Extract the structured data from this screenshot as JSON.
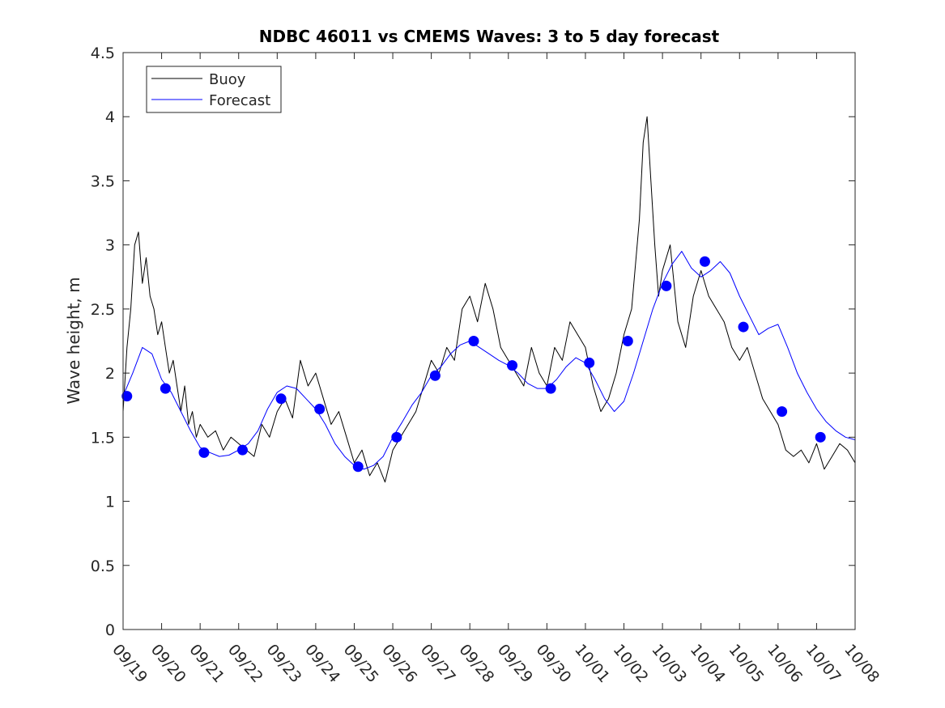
{
  "chart_data": {
    "type": "line",
    "title": "NDBC 46011 vs CMEMS Waves: 3 to 5 day forecast",
    "xlabel": "",
    "ylabel": "Wave height, m",
    "xlim": [
      0,
      19
    ],
    "ylim": [
      0,
      4.5
    ],
    "yticks": [
      0,
      0.5,
      1,
      1.5,
      2,
      2.5,
      3,
      3.5,
      4,
      4.5
    ],
    "ytick_labels": [
      "0",
      "0.5",
      "1",
      "1.5",
      "2",
      "2.5",
      "3",
      "3.5",
      "4",
      "4.5"
    ],
    "xtick_labels": [
      "09/19",
      "09/20",
      "09/21",
      "09/22",
      "09/23",
      "09/24",
      "09/25",
      "09/26",
      "09/27",
      "09/28",
      "09/29",
      "09/30",
      "10/01",
      "10/02",
      "10/03",
      "10/04",
      "10/05",
      "10/06",
      "10/07",
      "10/08"
    ],
    "legend": {
      "position": "top-left",
      "entries": [
        {
          "label": "Buoy",
          "color": "#000000"
        },
        {
          "label": "Forecast",
          "color": "#0000ff"
        }
      ]
    },
    "series": [
      {
        "name": "Buoy",
        "color": "#000000",
        "x": [
          0,
          0.1,
          0.2,
          0.3,
          0.4,
          0.5,
          0.6,
          0.7,
          0.8,
          0.9,
          1.0,
          1.1,
          1.2,
          1.3,
          1.4,
          1.5,
          1.6,
          1.7,
          1.8,
          1.9,
          2.0,
          2.2,
          2.4,
          2.6,
          2.8,
          3.0,
          3.2,
          3.4,
          3.6,
          3.8,
          4.0,
          4.2,
          4.4,
          4.6,
          4.8,
          5.0,
          5.2,
          5.4,
          5.6,
          5.8,
          6.0,
          6.2,
          6.4,
          6.6,
          6.8,
          7.0,
          7.2,
          7.4,
          7.6,
          7.8,
          8.0,
          8.2,
          8.4,
          8.6,
          8.8,
          9.0,
          9.2,
          9.4,
          9.6,
          9.8,
          10.0,
          10.2,
          10.4,
          10.6,
          10.8,
          11.0,
          11.2,
          11.4,
          11.6,
          11.8,
          12.0,
          12.2,
          12.4,
          12.6,
          12.8,
          13.0,
          13.2,
          13.4,
          13.5,
          13.6,
          13.7,
          13.8,
          13.9,
          14.0,
          14.2,
          14.4,
          14.6,
          14.8,
          15.0,
          15.2,
          15.4,
          15.6,
          15.8,
          16.0,
          16.2,
          16.4,
          16.6,
          16.8,
          17.0,
          17.2,
          17.4,
          17.6,
          17.8,
          18.0,
          18.2,
          18.4,
          18.6,
          18.8,
          19.0
        ],
        "values": [
          1.7,
          2.2,
          2.5,
          3.0,
          3.1,
          2.7,
          2.9,
          2.6,
          2.5,
          2.3,
          2.4,
          2.2,
          2.0,
          2.1,
          1.9,
          1.7,
          1.9,
          1.6,
          1.7,
          1.5,
          1.6,
          1.5,
          1.55,
          1.4,
          1.5,
          1.45,
          1.4,
          1.35,
          1.6,
          1.5,
          1.7,
          1.8,
          1.65,
          2.1,
          1.9,
          2.0,
          1.8,
          1.6,
          1.7,
          1.5,
          1.3,
          1.4,
          1.2,
          1.3,
          1.15,
          1.4,
          1.5,
          1.6,
          1.7,
          1.9,
          2.1,
          2.0,
          2.2,
          2.1,
          2.5,
          2.6,
          2.4,
          2.7,
          2.5,
          2.2,
          2.1,
          2.0,
          1.9,
          2.2,
          2.0,
          1.9,
          2.2,
          2.1,
          2.4,
          2.3,
          2.2,
          1.9,
          1.7,
          1.8,
          2.0,
          2.3,
          2.5,
          3.2,
          3.8,
          4.0,
          3.5,
          3.0,
          2.6,
          2.8,
          3.0,
          2.4,
          2.2,
          2.6,
          2.8,
          2.6,
          2.5,
          2.4,
          2.2,
          2.1,
          2.2,
          2.0,
          1.8,
          1.7,
          1.6,
          1.4,
          1.35,
          1.4,
          1.3,
          1.45,
          1.25,
          1.35,
          1.45,
          1.4,
          1.3
        ]
      },
      {
        "name": "Forecast",
        "color": "#0000ff",
        "x": [
          0,
          0.25,
          0.5,
          0.75,
          1.0,
          1.25,
          1.5,
          1.75,
          2.0,
          2.25,
          2.5,
          2.75,
          3.0,
          3.25,
          3.5,
          3.75,
          4.0,
          4.25,
          4.5,
          4.75,
          5.0,
          5.25,
          5.5,
          5.75,
          6.0,
          6.25,
          6.5,
          6.75,
          7.0,
          7.25,
          7.5,
          7.75,
          8.0,
          8.25,
          8.5,
          8.75,
          9.0,
          9.25,
          9.5,
          9.75,
          10.0,
          10.25,
          10.5,
          10.75,
          11.0,
          11.25,
          11.5,
          11.75,
          12.0,
          12.25,
          12.5,
          12.75,
          13.0,
          13.25,
          13.5,
          13.75,
          14.0,
          14.25,
          14.5,
          14.75,
          15.0,
          15.25,
          15.5,
          15.75,
          16.0,
          16.25,
          16.5,
          16.75,
          17.0,
          17.25,
          17.5,
          17.75,
          18.0,
          18.25,
          18.5,
          18.75,
          19.0
        ],
        "values": [
          1.82,
          2.0,
          2.2,
          2.15,
          1.95,
          1.85,
          1.7,
          1.55,
          1.42,
          1.38,
          1.35,
          1.36,
          1.4,
          1.45,
          1.55,
          1.72,
          1.85,
          1.9,
          1.88,
          1.8,
          1.72,
          1.6,
          1.45,
          1.35,
          1.28,
          1.25,
          1.28,
          1.35,
          1.5,
          1.62,
          1.75,
          1.85,
          1.98,
          2.05,
          2.15,
          2.22,
          2.25,
          2.2,
          2.15,
          2.1,
          2.06,
          2.0,
          1.92,
          1.88,
          1.88,
          1.95,
          2.05,
          2.12,
          2.08,
          1.95,
          1.8,
          1.7,
          1.78,
          2.0,
          2.25,
          2.5,
          2.7,
          2.85,
          2.95,
          2.82,
          2.75,
          2.8,
          2.87,
          2.78,
          2.6,
          2.45,
          2.3,
          2.35,
          2.38,
          2.2,
          2.0,
          1.85,
          1.72,
          1.62,
          1.55,
          1.5,
          1.48
        ]
      }
    ],
    "markers": {
      "name": "Forecast day markers",
      "color": "#0000ff",
      "x": [
        0.1,
        1.1,
        2.1,
        3.1,
        4.1,
        5.1,
        6.1,
        7.1,
        8.1,
        9.1,
        10.1,
        11.1,
        12.1,
        13.1,
        14.1,
        15.1,
        16.1,
        17.1,
        18.1
      ],
      "values": [
        1.82,
        1.88,
        1.38,
        1.4,
        1.8,
        1.72,
        1.27,
        1.5,
        1.98,
        2.25,
        2.06,
        1.88,
        2.08,
        2.25,
        2.68,
        2.87,
        2.36,
        1.7,
        1.5
      ]
    }
  }
}
